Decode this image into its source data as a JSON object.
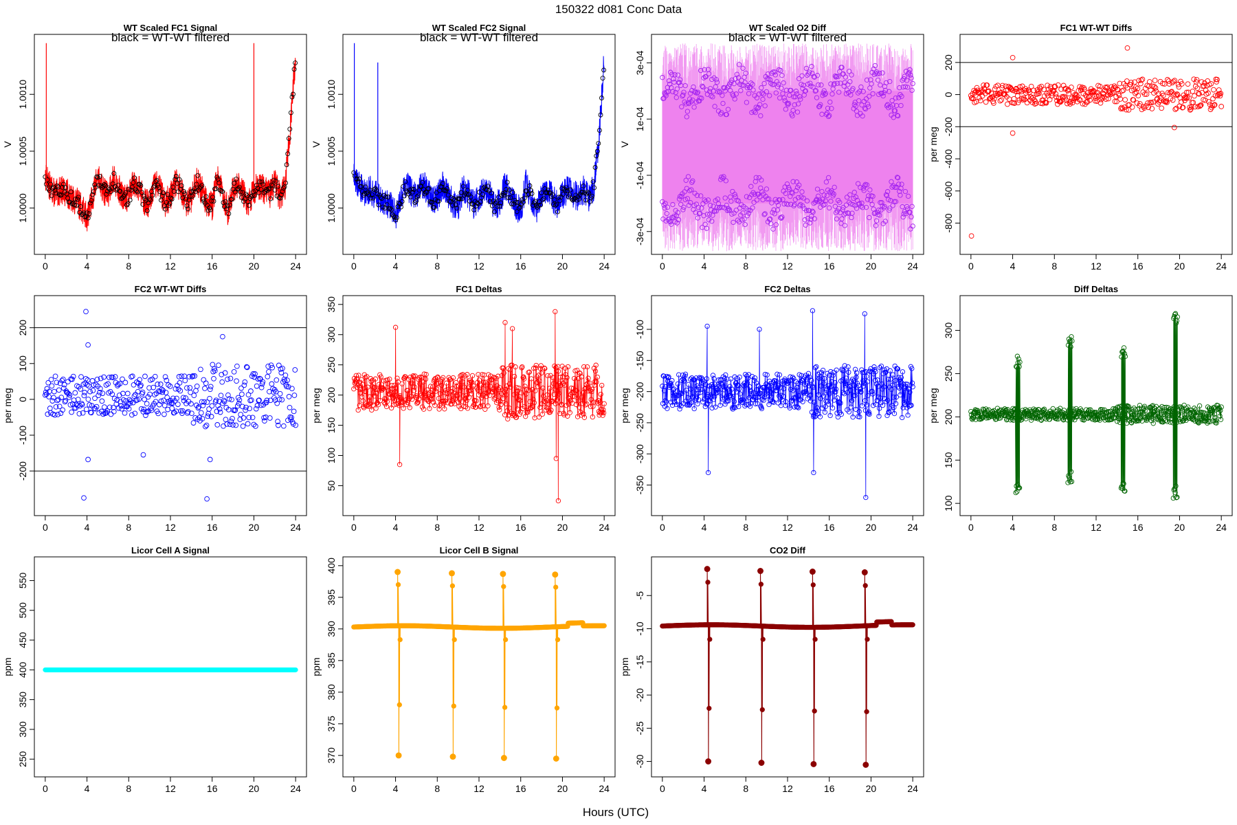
{
  "figure": {
    "title": "150322    d081    Conc Data",
    "xlabel": "Hours (UTC)"
  },
  "chart_data": [
    {
      "id": "p1",
      "type": "line",
      "title": "WT Scaled FC1 Signal",
      "annotation": "black = WT-WT filtered",
      "xlabel": "",
      "ylabel": "V",
      "xlim": [
        0,
        24
      ],
      "ylim": [
        0.99967,
        1.00145
      ],
      "xticks": [
        0,
        4,
        8,
        12,
        16,
        20,
        24
      ],
      "yticks": [
        {
          "v": 1.0,
          "label": "1.0000"
        },
        {
          "v": 1.0005,
          "label": "1.0005"
        },
        {
          "v": 1.001,
          "label": "1.0010"
        }
      ],
      "series": [
        {
          "color": "#ff0000",
          "style": "noisy-line",
          "x": [
            0,
            0.5,
            1,
            1.5,
            2,
            2.5,
            3,
            3.5,
            4,
            4.5,
            5,
            5.5,
            6,
            6.5,
            7,
            7.5,
            8,
            8.5,
            9,
            9.5,
            10,
            10.5,
            11,
            11.5,
            12,
            12.5,
            13,
            13.5,
            14,
            14.5,
            15,
            15.5,
            16,
            16.5,
            17,
            17.5,
            18,
            18.5,
            19,
            19.5,
            20,
            20.5,
            21,
            21.5,
            22,
            22.5,
            23,
            23.5,
            24
          ],
          "y": [
            1.00028,
            1.00018,
            1.00012,
            1.00016,
            1.00014,
            1.00008,
            1.00006,
            1.0,
            0.99992,
            1.00008,
            1.00028,
            1.00016,
            1.00012,
            1.00026,
            1.00018,
            1.00008,
            1.0001,
            1.00024,
            1.00018,
            1.00006,
            1.00002,
            1.00022,
            1.00016,
            1.00004,
            1.0001,
            1.00022,
            1.00018,
            1.00002,
            1.00008,
            1.00024,
            1.00016,
            1.00004,
            1.00002,
            1.00028,
            1.00012,
            0.99998,
            1.00016,
            1.00022,
            1.00012,
            1.00004,
            1.00016,
            1.0002,
            1.00016,
            1.00012,
            1.00022,
            1.0001,
            1.0002,
            1.00072,
            1.00135
          ],
          "amp": 0.00013
        },
        {
          "color": "#000000",
          "style": "points",
          "points_only": true
        }
      ],
      "spikes": [
        {
          "x": 0.1,
          "y": 1.00145
        },
        {
          "x": 20,
          "y": 1.00145
        }
      ]
    },
    {
      "id": "p2",
      "type": "line",
      "title": "WT Scaled FC2 Signal",
      "annotation": "black = WT-WT filtered",
      "xlabel": "",
      "ylabel": "V",
      "xlim": [
        0,
        24
      ],
      "ylim": [
        0.99967,
        1.00145
      ],
      "xticks": [
        0,
        4,
        8,
        12,
        16,
        20,
        24
      ],
      "yticks": [
        {
          "v": 1.0,
          "label": "1.0000"
        },
        {
          "v": 1.0005,
          "label": "1.0005"
        },
        {
          "v": 1.001,
          "label": "1.0010"
        }
      ],
      "series": [
        {
          "color": "#0000ff",
          "style": "noisy-line",
          "x": [
            0,
            0.5,
            1,
            1.5,
            2,
            2.5,
            3,
            3.5,
            4,
            4.5,
            5,
            5.5,
            6,
            6.5,
            7,
            7.5,
            8,
            8.5,
            9,
            9.5,
            10,
            10.5,
            11,
            11.5,
            12,
            12.5,
            13,
            13.5,
            14,
            14.5,
            15,
            15.5,
            16,
            16.5,
            17,
            17.5,
            18,
            18.5,
            19,
            19.5,
            20,
            20.5,
            21,
            21.5,
            22,
            22.5,
            23,
            23.5,
            24
          ],
          "y": [
            1.00028,
            1.0002,
            1.00014,
            1.00016,
            1.00012,
            1.00008,
            1.00006,
            1.00002,
            0.99994,
            1.00006,
            1.00022,
            1.00014,
            1.0001,
            1.00022,
            1.00016,
            1.00006,
            1.00008,
            1.0002,
            1.00014,
            1.00004,
            1.00002,
            1.00018,
            1.00012,
            1.00002,
            1.00008,
            1.00018,
            1.00014,
            1.0,
            1.00006,
            1.0002,
            1.00012,
            1.00002,
            0.99998,
            1.00022,
            1.0001,
            0.99998,
            1.00012,
            1.00018,
            1.0001,
            1.00002,
            1.00012,
            1.00016,
            1.00012,
            1.0001,
            1.00016,
            1.00008,
            1.00018,
            1.00062,
            1.0013
          ],
          "amp": 0.00013
        },
        {
          "color": "#000000",
          "style": "points",
          "points_only": true
        }
      ],
      "spikes": [
        {
          "x": 0.05,
          "y": 1.00145
        },
        {
          "x": 2.3,
          "y": 1.00128
        }
      ]
    },
    {
      "id": "p3",
      "type": "scatter",
      "title": "WT Scaled O2 Diff",
      "annotation": "black = WT-WT filtered",
      "xlabel": "",
      "ylabel": "V",
      "xlim": [
        0,
        24
      ],
      "ylim": [
        -0.00035,
        0.00037
      ],
      "xticks": [
        0,
        4,
        8,
        12,
        16,
        20,
        24
      ],
      "yticks": [
        {
          "v": -0.0003,
          "label": "-3e-04"
        },
        {
          "v": -0.0001,
          "label": "-1e-04"
        },
        {
          "v": 0.0001,
          "label": "1e-04"
        },
        {
          "v": 0.0003,
          "label": "3e-04"
        }
      ],
      "series": [
        {
          "color": "#ee82ee",
          "style": "band",
          "lower": -0.0002,
          "upper": 0.0002
        },
        {
          "color": "#a020f0",
          "style": "two-level-points",
          "levels": [
            0.0002,
            -0.0002
          ],
          "amp": 8e-05
        }
      ]
    },
    {
      "id": "p4",
      "type": "scatter",
      "title": "FC1 WT-WT Diffs",
      "xlabel": "",
      "ylabel": "per meg",
      "xlim": [
        0,
        24
      ],
      "ylim": [
        -940,
        320
      ],
      "xticks": [
        0,
        4,
        8,
        12,
        16,
        20,
        24
      ],
      "yticks": [
        {
          "v": -800,
          "label": "-800"
        },
        {
          "v": -600,
          "label": "-600"
        },
        {
          "v": -400,
          "label": "-400"
        },
        {
          "v": -200,
          "label": "-200"
        },
        {
          "v": 0,
          "label": "0"
        },
        {
          "v": 200,
          "label": "200"
        }
      ],
      "hlines": [
        200,
        -200
      ],
      "series": [
        {
          "color": "#ff0000",
          "style": "scatter",
          "center": 0,
          "amp": 60,
          "count": 420
        }
      ],
      "outliers": [
        {
          "x": 0.05,
          "y": -880
        },
        {
          "x": 4,
          "y": 230
        },
        {
          "x": 4,
          "y": -240
        },
        {
          "x": 15,
          "y": 290
        },
        {
          "x": 19.5,
          "y": -205
        }
      ]
    },
    {
      "id": "p5",
      "type": "scatter",
      "title": "FC2 WT-WT Diffs",
      "xlabel": "",
      "ylabel": "per meg",
      "xlim": [
        0,
        24
      ],
      "ylim": [
        -300,
        265
      ],
      "xticks": [
        0,
        4,
        8,
        12,
        16,
        20,
        24
      ],
      "yticks": [
        {
          "v": -200,
          "label": "-200"
        },
        {
          "v": -100,
          "label": "-100"
        },
        {
          "v": 0,
          "label": "0"
        },
        {
          "v": 100,
          "label": "100"
        },
        {
          "v": 200,
          "label": "200"
        }
      ],
      "hlines": [
        200,
        -200
      ],
      "series": [
        {
          "color": "#0000ff",
          "style": "scatter",
          "center": 10,
          "amp": 55,
          "count": 420
        }
      ],
      "outliers": [
        {
          "x": 3.9,
          "y": 245
        },
        {
          "x": 4.1,
          "y": 152
        },
        {
          "x": 4.1,
          "y": -168
        },
        {
          "x": 3.7,
          "y": -275
        },
        {
          "x": 9.4,
          "y": -155
        },
        {
          "x": 15.5,
          "y": -278
        },
        {
          "x": 15.8,
          "y": -168
        },
        {
          "x": 17,
          "y": 175
        }
      ]
    },
    {
      "id": "p6",
      "type": "line",
      "title": "FC1 Deltas",
      "xlabel": "",
      "ylabel": "per meg",
      "xlim": [
        0,
        24
      ],
      "ylim": [
        15,
        350
      ],
      "xticks": [
        0,
        4,
        8,
        12,
        16,
        20,
        24
      ],
      "yticks": [
        {
          "v": 50,
          "label": "50"
        },
        {
          "v": 100,
          "label": "100"
        },
        {
          "v": 150,
          "label": "150"
        },
        {
          "v": 200,
          "label": "200"
        },
        {
          "v": 250,
          "label": "250"
        },
        {
          "v": 300,
          "label": "300"
        },
        {
          "v": 350,
          "label": "350"
        }
      ],
      "series": [
        {
          "color": "#ff0000",
          "style": "line-points",
          "center": 205,
          "amp": 30,
          "count": 520
        }
      ],
      "outliers": [
        {
          "x": 4.0,
          "y": 312
        },
        {
          "x": 4.4,
          "y": 85
        },
        {
          "x": 14.5,
          "y": 320
        },
        {
          "x": 19.3,
          "y": 338
        },
        {
          "x": 19.6,
          "y": 25
        },
        {
          "x": 15.2,
          "y": 310
        },
        {
          "x": 19.4,
          "y": 95
        }
      ]
    },
    {
      "id": "p7",
      "type": "line",
      "title": "FC2 Deltas",
      "xlabel": "",
      "ylabel": "per meg",
      "xlim": [
        0,
        24
      ],
      "ylim": [
        -385,
        -60
      ],
      "xticks": [
        0,
        4,
        8,
        12,
        16,
        20,
        24
      ],
      "yticks": [
        {
          "v": -350,
          "label": "-350"
        },
        {
          "v": -300,
          "label": "-300"
        },
        {
          "v": -250,
          "label": "-250"
        },
        {
          "v": -200,
          "label": "-200"
        },
        {
          "v": -150,
          "label": "-150"
        },
        {
          "v": -100,
          "label": "-100"
        }
      ],
      "series": [
        {
          "color": "#0000ff",
          "style": "line-points",
          "center": -200,
          "amp": 28,
          "count": 520
        }
      ],
      "outliers": [
        {
          "x": 4.3,
          "y": -95
        },
        {
          "x": 4.4,
          "y": -330
        },
        {
          "x": 9.3,
          "y": -100
        },
        {
          "x": 14.4,
          "y": -70
        },
        {
          "x": 14.5,
          "y": -330
        },
        {
          "x": 19.4,
          "y": -75
        },
        {
          "x": 19.5,
          "y": -370
        }
      ]
    },
    {
      "id": "p8",
      "type": "line",
      "title": "Diff Deltas",
      "xlabel": "",
      "ylabel": "per meg",
      "xlim": [
        0,
        24
      ],
      "ylim": [
        96,
        330
      ],
      "xticks": [
        0,
        4,
        8,
        12,
        16,
        20,
        24
      ],
      "yticks": [
        {
          "v": 100,
          "label": "100"
        },
        {
          "v": 150,
          "label": "150"
        },
        {
          "v": 200,
          "label": "200"
        },
        {
          "v": 250,
          "label": "250"
        },
        {
          "v": 300,
          "label": "300"
        }
      ],
      "series": [
        {
          "color": "#006400",
          "style": "line-points",
          "center": 203,
          "amp": 7,
          "count": 520
        }
      ],
      "events": [
        {
          "x": 4.3,
          "hi": 272,
          "lo": 108
        },
        {
          "x": 9.3,
          "hi": 295,
          "lo": 122
        },
        {
          "x": 14.4,
          "hi": 282,
          "lo": 112
        },
        {
          "x": 19.4,
          "hi": 322,
          "lo": 106
        }
      ]
    },
    {
      "id": "p9",
      "type": "line",
      "title": "Licor Cell A Signal",
      "xlabel": "",
      "ylabel": "ppm",
      "xlim": [
        0,
        24
      ],
      "ylim": [
        235,
        575
      ],
      "xticks": [
        0,
        4,
        8,
        12,
        16,
        20,
        24
      ],
      "yticks": [
        {
          "v": 250,
          "label": "250"
        },
        {
          "v": 300,
          "label": "300"
        },
        {
          "v": 350,
          "label": "350"
        },
        {
          "v": 400,
          "label": "400"
        },
        {
          "v": 450,
          "label": "450"
        },
        {
          "v": 500,
          "label": "500"
        },
        {
          "v": 550,
          "label": "550"
        }
      ],
      "series": [
        {
          "color": "#00ffff",
          "style": "thick-line",
          "value": 400
        }
      ]
    },
    {
      "id": "p10",
      "type": "line",
      "title": "Licor Cell B Signal",
      "xlabel": "",
      "ylabel": "ppm",
      "xlim": [
        0,
        24
      ],
      "ylim": [
        368,
        400
      ],
      "xticks": [
        0,
        4,
        8,
        12,
        16,
        20,
        24
      ],
      "yticks": [
        {
          "v": 370,
          "label": "370"
        },
        {
          "v": 375,
          "label": "375"
        },
        {
          "v": 380,
          "label": "380"
        },
        {
          "v": 385,
          "label": "385"
        },
        {
          "v": 390,
          "label": "390"
        },
        {
          "v": 395,
          "label": "395"
        },
        {
          "v": 400,
          "label": "400"
        }
      ],
      "series": [
        {
          "color": "#ffa500",
          "style": "baseline-points",
          "value": 390.3
        }
      ],
      "events": [
        {
          "x": 4.2,
          "hi": 399,
          "lo": 370
        },
        {
          "x": 9.4,
          "hi": 398.8,
          "lo": 369.8
        },
        {
          "x": 14.3,
          "hi": 398.7,
          "lo": 369.6
        },
        {
          "x": 19.3,
          "hi": 398.6,
          "lo": 369.5
        }
      ]
    },
    {
      "id": "p11",
      "type": "line",
      "title": "CO2 Diff",
      "xlabel": "",
      "ylabel": "ppm",
      "xlim": [
        0,
        24
      ],
      "ylim": [
        -31,
        -0.5
      ],
      "xticks": [
        0,
        4,
        8,
        12,
        16,
        20,
        24
      ],
      "yticks": [
        {
          "v": -30,
          "label": "-30"
        },
        {
          "v": -25,
          "label": "-25"
        },
        {
          "v": -20,
          "label": "-20"
        },
        {
          "v": -15,
          "label": "-15"
        },
        {
          "v": -10,
          "label": "-10"
        },
        {
          "v": -5,
          "label": "-5"
        }
      ],
      "series": [
        {
          "color": "#8b0000",
          "style": "baseline-points",
          "value": -9.6
        }
      ],
      "events": [
        {
          "x": 4.3,
          "hi": -1,
          "lo": -30
        },
        {
          "x": 9.4,
          "hi": -1.3,
          "lo": -30.2
        },
        {
          "x": 14.4,
          "hi": -1.4,
          "lo": -30.4
        },
        {
          "x": 19.4,
          "hi": -1.5,
          "lo": -30.5
        }
      ]
    }
  ]
}
